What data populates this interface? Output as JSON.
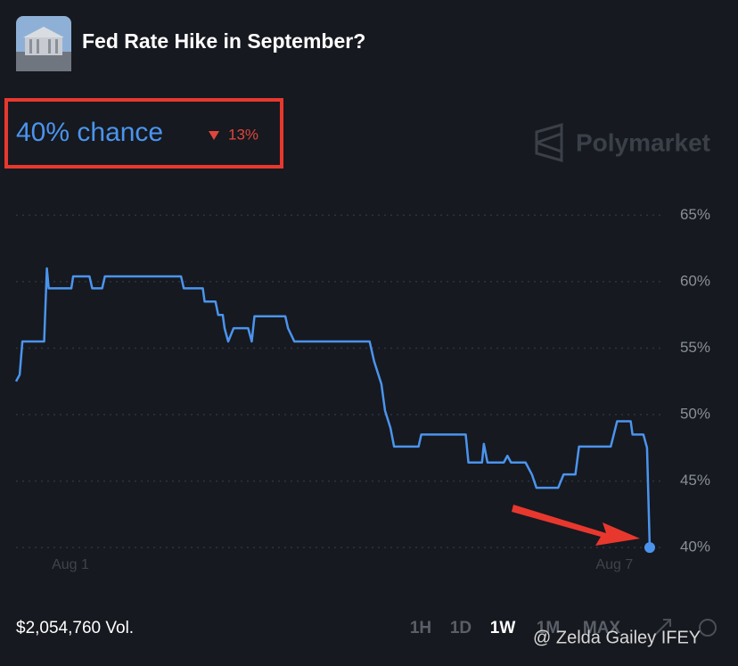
{
  "header": {
    "title": "Fed Rate Hike in September?",
    "chance": "40% chance",
    "change": "13%",
    "brand": "Polymarket"
  },
  "chart_data": {
    "type": "line",
    "x": [
      0.4,
      0.44,
      0.47,
      0.71,
      0.74,
      0.76,
      1.01,
      1.03,
      1.21,
      1.24,
      1.35,
      1.38,
      2.22,
      2.25,
      2.46,
      2.48,
      2.6,
      2.63,
      2.68,
      2.7,
      2.74,
      2.8,
      2.96,
      3.0,
      3.03,
      3.37,
      3.4,
      3.47,
      4.3,
      4.35,
      4.43,
      4.47,
      4.53,
      4.57,
      4.84,
      4.87,
      5.36,
      5.39,
      5.54,
      5.56,
      5.6,
      5.78,
      5.82,
      5.86,
      6.02,
      6.09,
      6.14,
      6.38,
      6.44,
      6.57,
      6.61,
      6.96,
      7.03,
      7.18,
      7.2,
      7.32,
      7.36,
      7.39
    ],
    "series": [
      {
        "color": "#4b94ee",
        "values": [
          52.5,
          53.0,
          55.5,
          55.5,
          61.0,
          59.5,
          59.5,
          60.4,
          60.4,
          59.5,
          59.5,
          60.4,
          60.4,
          59.5,
          59.5,
          58.5,
          58.5,
          57.5,
          57.5,
          56.5,
          55.5,
          56.5,
          56.5,
          55.5,
          57.4,
          57.4,
          56.5,
          55.5,
          55.5,
          54.0,
          52.3,
          50.3,
          49.0,
          47.6,
          47.6,
          48.5,
          48.5,
          46.4,
          46.4,
          47.8,
          46.4,
          46.4,
          46.9,
          46.4,
          46.4,
          45.5,
          44.5,
          44.5,
          45.5,
          45.5,
          47.6,
          47.6,
          49.5,
          49.5,
          48.5,
          48.5,
          47.5,
          40.0
        ]
      }
    ],
    "xlim": [
      0.4,
      7.4
    ],
    "ylim": [
      38,
      66.5
    ],
    "xticks": [
      {
        "value": 1,
        "label": "Aug 1"
      },
      {
        "value": 7,
        "label": "Aug 7"
      }
    ],
    "yticks": [
      {
        "value": 40,
        "label": "40%"
      },
      {
        "value": 45,
        "label": "45%"
      },
      {
        "value": 50,
        "label": "50%"
      },
      {
        "value": 55,
        "label": "55%"
      },
      {
        "value": 60,
        "label": "60%"
      },
      {
        "value": 65,
        "label": "65%"
      }
    ],
    "grid": true
  },
  "footer": {
    "volume": "$2,054,760 Vol.",
    "ranges": [
      "1H",
      "1D",
      "1W",
      "1M",
      "MAX"
    ]
  },
  "watermark": "@ Zelda Gailey IFEY"
}
